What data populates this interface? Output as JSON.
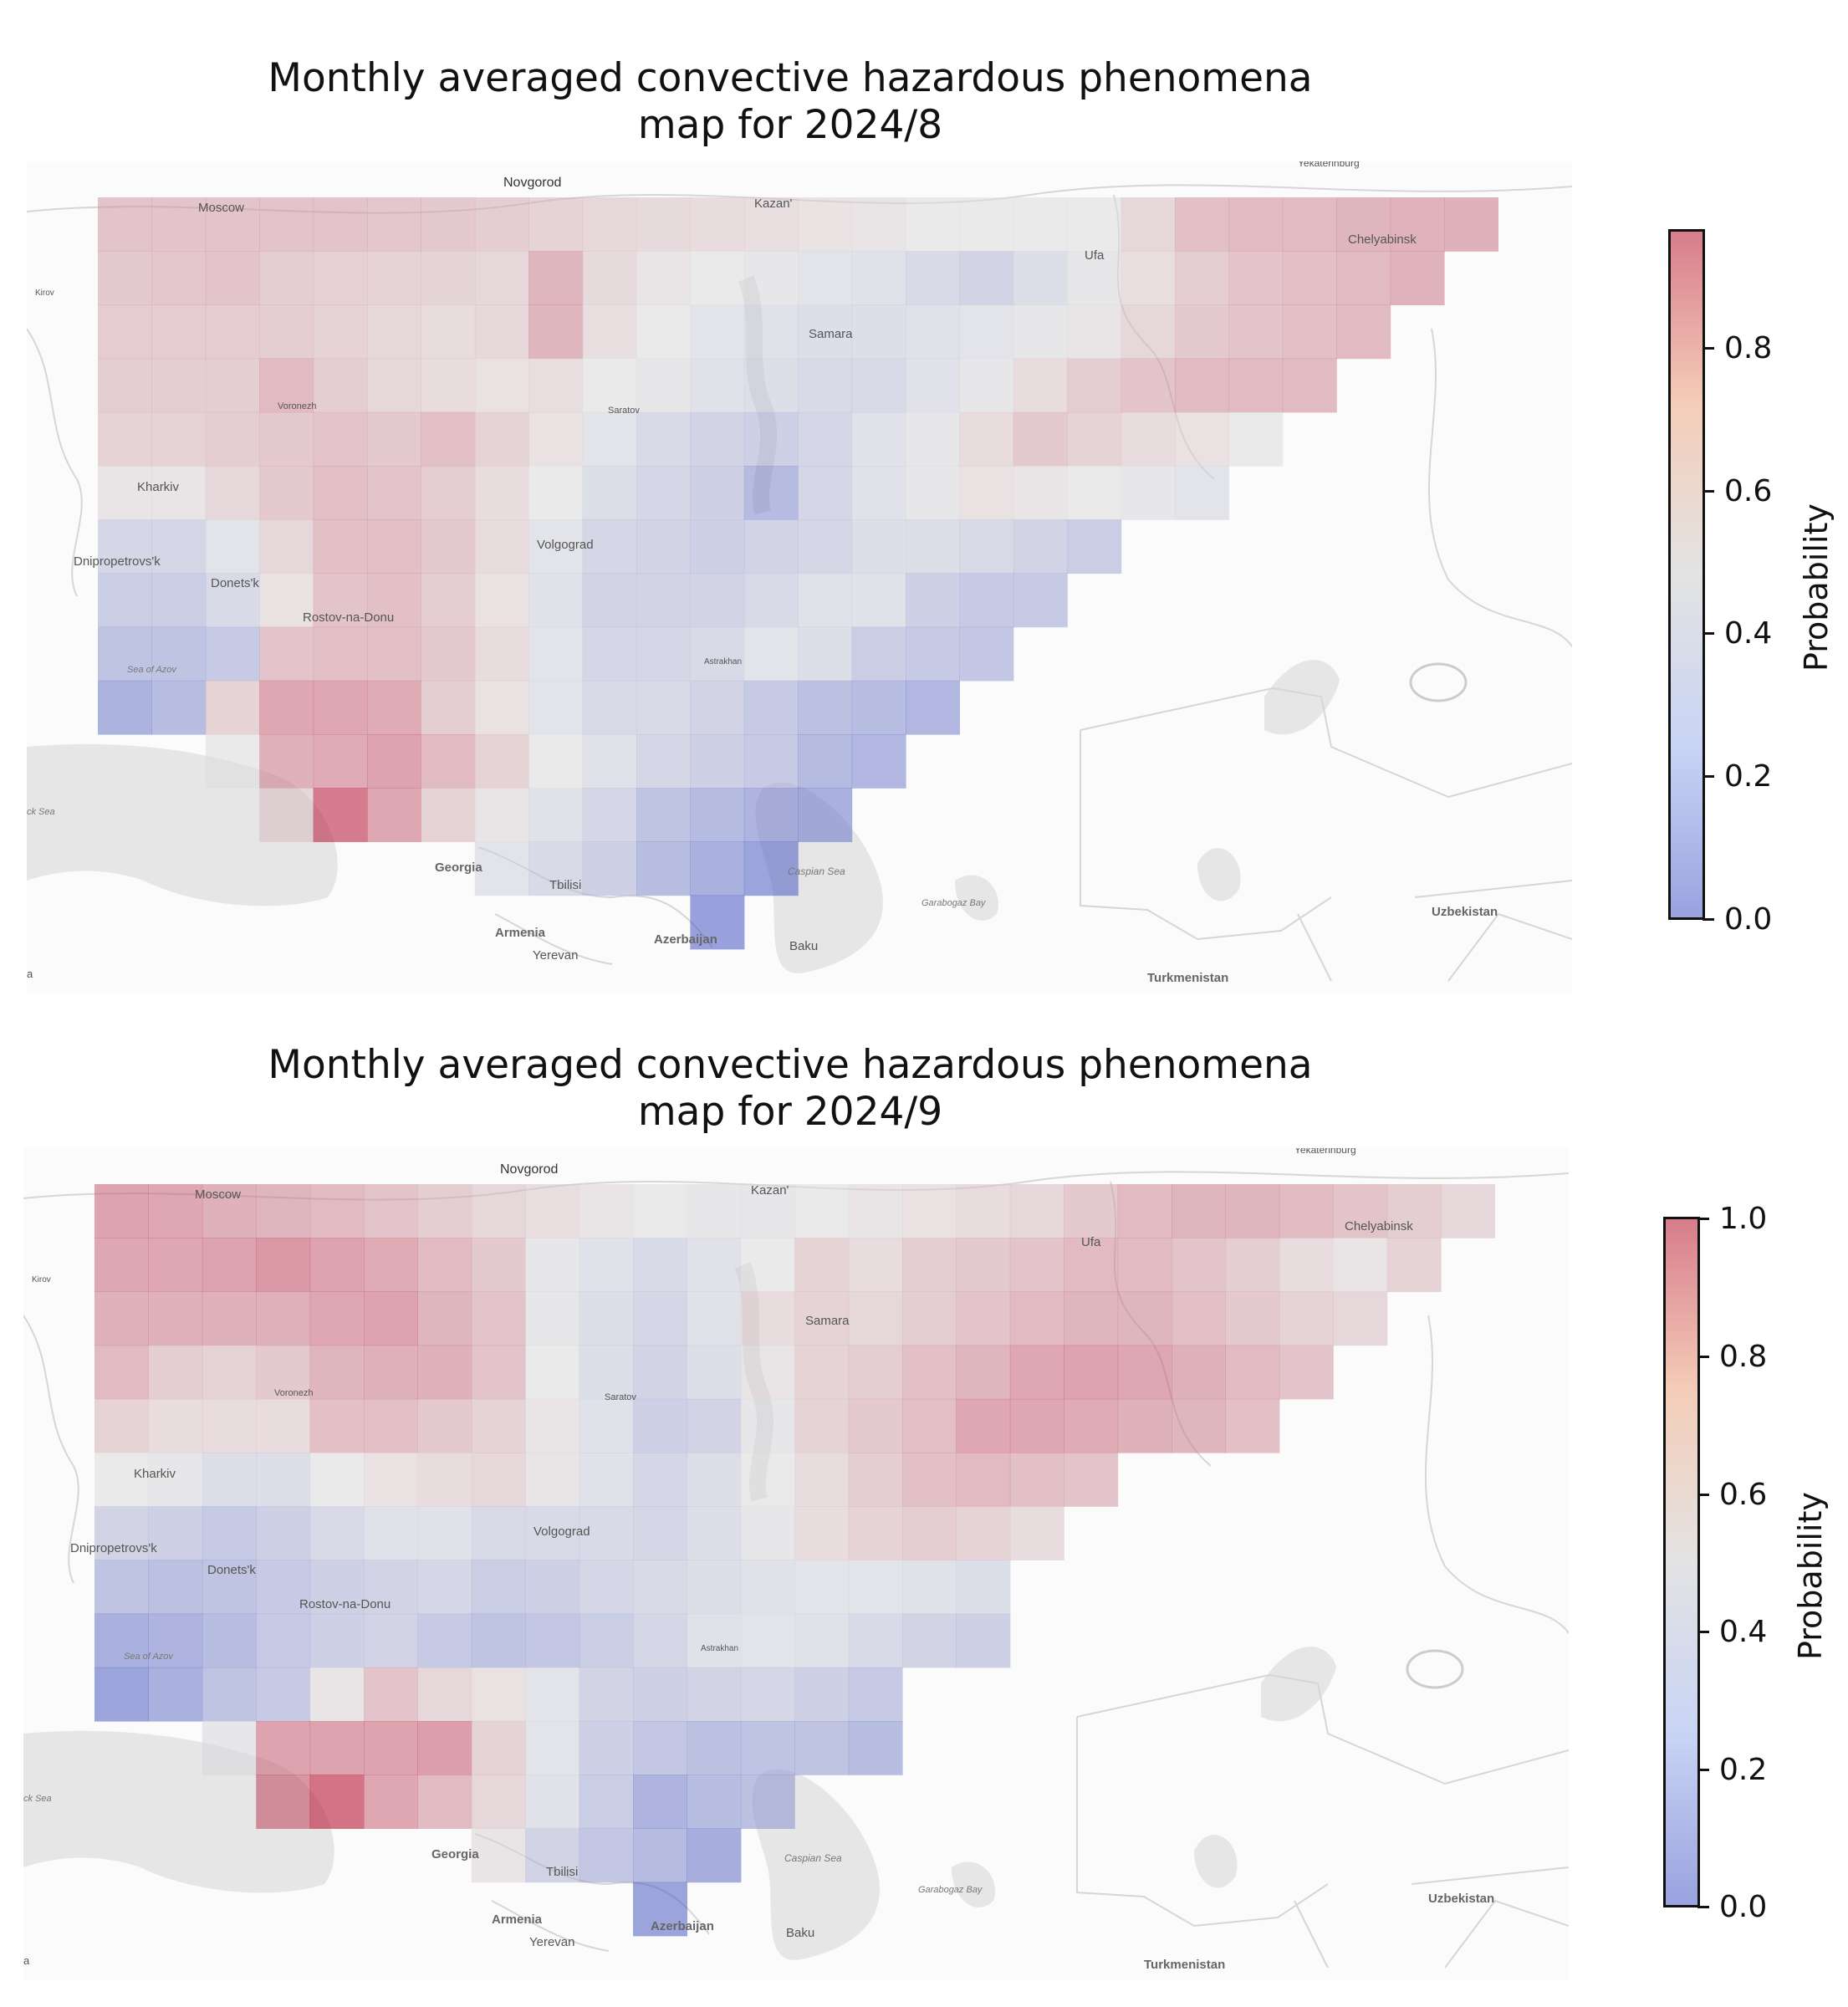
{
  "panels": [
    {
      "title_line1": "Monthly averaged convective hazardous phenomena",
      "title_line2": "map for 2024/8",
      "colorbar": {
        "label": "Probability",
        "ticks": [
          "0.0",
          "0.2",
          "0.4",
          "0.6",
          "0.8"
        ],
        "min": 0.0,
        "max": 0.96
      }
    },
    {
      "title_line1": "Monthly averaged convective hazardous phenomena",
      "title_line2": "map for 2024/9",
      "colorbar": {
        "label": "Probability",
        "ticks": [
          "0.0",
          "0.2",
          "0.4",
          "0.6",
          "0.8",
          "1.0"
        ],
        "min": 0.0,
        "max": 1.0
      }
    }
  ],
  "map_labels": {
    "novgorod": "Novgorod",
    "moscow": "Moscow",
    "kazan": "Kazan'",
    "chelyabinsk": "Chelyabinsk",
    "kirov": "Kirov",
    "ufa": "Ufa",
    "samara": "Samara",
    "voronezh": "Voronezh",
    "saratov": "Saratov",
    "kharkiv": "Kharkiv",
    "volgograd": "Volgograd",
    "dnipro": "Dnipropetrovs'k",
    "donetsk": "Donets'k",
    "rostov": "Rostov-na-Donu",
    "azov": "Sea of Azov",
    "astrakhan": "Astrakhan",
    "blacksea": "ck Sea",
    "georgia": "Georgia",
    "tbilisi": "Tbilisi",
    "caspian": "Caspian Sea",
    "garabogaz": "Garabogaz Bay",
    "armenia": "Armenia",
    "yerevan": "Yerevan",
    "azerbaijan": "Azerbaijan",
    "baku": "Baku",
    "uzbekistan": "Uzbekistan",
    "turkmenistan": "Turkmenistan",
    "edge_a": "a",
    "yekaterinburg": "Yekaterinburg"
  },
  "colors": {
    "low": "#3b4cc0",
    "mid": "#dddddd",
    "high": "#b40426"
  },
  "chart_data": {
    "type": "heatmap",
    "grid": {
      "columns": 26,
      "rows": 14,
      "west_to_east": "columns",
      "north_to_south": "rows"
    },
    "months": [
      {
        "month": "2024/8",
        "rows": [
          [
            0.66,
            0.66,
            0.66,
            0.66,
            0.66,
            0.65,
            0.64,
            0.62,
            0.6,
            0.58,
            0.57,
            0.56,
            0.55,
            0.53,
            0.52,
            0.5,
            0.5,
            0.5,
            0.5,
            0.58,
            0.68,
            0.7,
            0.7,
            0.72,
            0.73,
            0.74
          ],
          [
            0.64,
            0.65,
            0.66,
            0.62,
            0.61,
            0.6,
            0.59,
            0.58,
            0.72,
            0.57,
            0.52,
            0.5,
            0.48,
            0.46,
            0.44,
            0.4,
            0.36,
            0.42,
            0.48,
            0.55,
            0.62,
            0.66,
            0.68,
            0.7,
            0.73,
            null
          ],
          [
            0.63,
            0.63,
            0.63,
            0.62,
            0.6,
            0.58,
            0.56,
            0.58,
            0.72,
            0.55,
            0.5,
            0.46,
            0.44,
            0.42,
            0.42,
            0.44,
            0.46,
            0.48,
            0.52,
            0.58,
            0.64,
            0.66,
            0.68,
            0.7,
            null,
            null
          ],
          [
            0.62,
            0.62,
            0.62,
            0.7,
            0.62,
            0.58,
            0.56,
            0.54,
            0.55,
            0.5,
            0.48,
            0.44,
            0.42,
            0.4,
            0.4,
            0.44,
            0.48,
            0.56,
            0.62,
            0.66,
            0.7,
            0.7,
            0.7,
            null,
            null,
            null
          ],
          [
            0.6,
            0.6,
            0.62,
            0.64,
            0.66,
            0.64,
            0.68,
            0.6,
            0.54,
            0.46,
            0.4,
            0.36,
            0.34,
            0.38,
            0.44,
            0.48,
            0.56,
            0.64,
            0.6,
            0.56,
            0.54,
            0.5,
            null,
            null,
            null,
            null
          ],
          [
            0.52,
            0.52,
            0.58,
            0.64,
            0.68,
            0.66,
            0.62,
            0.56,
            0.5,
            0.42,
            0.38,
            0.34,
            0.2,
            0.38,
            0.44,
            0.48,
            0.54,
            0.52,
            0.5,
            0.48,
            0.46,
            null,
            null,
            null,
            null,
            null
          ],
          [
            0.38,
            0.38,
            0.46,
            0.58,
            0.68,
            0.68,
            0.64,
            0.56,
            0.46,
            0.38,
            0.36,
            0.34,
            0.36,
            0.38,
            0.42,
            0.42,
            0.4,
            0.36,
            0.32,
            null,
            null,
            null,
            null,
            null,
            null,
            null
          ],
          [
            0.32,
            0.32,
            0.4,
            0.54,
            0.66,
            0.68,
            0.62,
            0.54,
            0.44,
            0.36,
            0.36,
            0.36,
            0.4,
            0.44,
            0.44,
            0.34,
            0.3,
            0.3,
            null,
            null,
            null,
            null,
            null,
            null,
            null,
            null
          ],
          [
            0.26,
            0.26,
            0.3,
            0.66,
            0.68,
            0.68,
            0.64,
            0.56,
            0.46,
            0.38,
            0.38,
            0.4,
            0.46,
            0.42,
            0.32,
            0.3,
            0.28,
            null,
            null,
            null,
            null,
            null,
            null,
            null,
            null,
            null
          ],
          [
            0.15,
            0.22,
            0.6,
            0.78,
            0.78,
            0.76,
            0.62,
            0.54,
            0.46,
            0.4,
            0.4,
            0.36,
            0.3,
            0.24,
            0.22,
            0.18,
            null,
            null,
            null,
            null,
            null,
            null,
            null,
            null,
            null,
            null
          ],
          [
            null,
            null,
            0.5,
            0.74,
            0.76,
            0.8,
            0.7,
            0.6,
            0.5,
            0.44,
            0.38,
            0.34,
            0.3,
            0.2,
            0.18,
            null,
            null,
            null,
            null,
            null,
            null,
            null,
            null,
            null,
            null,
            null
          ],
          [
            null,
            null,
            null,
            0.58,
            0.96,
            0.78,
            0.6,
            0.52,
            0.44,
            0.38,
            0.26,
            0.2,
            0.16,
            0.14,
            null,
            null,
            null,
            null,
            null,
            null,
            null,
            null,
            null,
            null,
            null,
            null
          ],
          [
            null,
            null,
            null,
            null,
            null,
            null,
            null,
            0.46,
            0.4,
            0.34,
            0.22,
            0.14,
            0.06,
            null,
            null,
            null,
            null,
            null,
            null,
            null,
            null,
            null,
            null,
            null,
            null,
            null
          ],
          [
            null,
            null,
            null,
            null,
            null,
            null,
            null,
            null,
            null,
            null,
            null,
            0.04,
            null,
            null,
            null,
            null,
            null,
            null,
            null,
            null,
            null,
            null,
            null,
            null,
            null,
            null
          ]
        ]
      },
      {
        "month": "2024/9",
        "rows": [
          [
            0.8,
            0.78,
            0.74,
            0.72,
            0.7,
            0.66,
            0.62,
            0.58,
            0.55,
            0.52,
            0.5,
            0.48,
            0.48,
            0.5,
            0.52,
            0.54,
            0.56,
            0.58,
            0.64,
            0.7,
            0.72,
            0.72,
            0.7,
            0.66,
            0.62,
            0.58
          ],
          [
            0.78,
            0.78,
            0.8,
            0.84,
            0.8,
            0.76,
            0.7,
            0.64,
            0.48,
            0.44,
            0.4,
            0.44,
            0.5,
            0.6,
            0.56,
            0.62,
            0.64,
            0.66,
            0.7,
            0.7,
            0.66,
            0.62,
            0.56,
            0.52,
            0.6,
            null
          ],
          [
            0.74,
            0.74,
            0.74,
            0.74,
            0.78,
            0.8,
            0.72,
            0.66,
            0.48,
            0.42,
            0.38,
            0.44,
            0.56,
            0.6,
            0.58,
            0.62,
            0.66,
            0.7,
            0.72,
            0.72,
            0.68,
            0.64,
            0.6,
            0.58,
            null,
            null
          ],
          [
            0.7,
            0.62,
            0.6,
            0.64,
            0.72,
            0.74,
            0.74,
            0.66,
            0.5,
            0.42,
            0.36,
            0.42,
            0.52,
            0.6,
            0.62,
            0.68,
            0.72,
            0.78,
            0.8,
            0.78,
            0.74,
            0.7,
            0.66,
            null,
            null,
            null
          ],
          [
            0.6,
            0.56,
            0.56,
            0.56,
            0.68,
            0.68,
            0.64,
            0.6,
            0.52,
            0.44,
            0.34,
            0.36,
            0.48,
            0.6,
            0.64,
            0.68,
            0.78,
            0.78,
            0.76,
            0.74,
            0.72,
            0.68,
            null,
            null,
            null,
            null
          ],
          [
            0.5,
            0.48,
            0.42,
            0.42,
            0.5,
            0.54,
            0.56,
            0.58,
            0.52,
            0.44,
            0.38,
            0.42,
            0.5,
            0.56,
            0.62,
            0.68,
            0.7,
            0.68,
            0.66,
            null,
            null,
            null,
            null,
            null,
            null,
            null
          ],
          [
            0.36,
            0.34,
            0.3,
            0.34,
            0.4,
            0.44,
            0.44,
            0.4,
            0.4,
            0.4,
            0.38,
            0.42,
            0.48,
            0.56,
            0.6,
            0.62,
            0.6,
            0.56,
            null,
            null,
            null,
            null,
            null,
            null,
            null,
            null
          ],
          [
            0.26,
            0.24,
            0.26,
            0.3,
            0.34,
            0.36,
            0.38,
            0.32,
            0.34,
            0.38,
            0.4,
            0.42,
            0.44,
            0.46,
            0.46,
            0.44,
            0.42,
            null,
            null,
            null,
            null,
            null,
            null,
            null,
            null,
            null
          ],
          [
            0.14,
            0.16,
            0.22,
            0.3,
            0.34,
            0.36,
            0.3,
            0.26,
            0.28,
            0.32,
            0.38,
            0.44,
            0.46,
            0.44,
            0.4,
            0.36,
            0.34,
            null,
            null,
            null,
            null,
            null,
            null,
            null,
            null,
            null
          ],
          [
            0.06,
            0.14,
            0.26,
            0.3,
            0.52,
            0.66,
            0.58,
            0.54,
            0.46,
            0.36,
            0.34,
            0.36,
            0.38,
            0.34,
            0.3,
            null,
            null,
            null,
            null,
            null,
            null,
            null,
            null,
            null,
            null,
            null
          ],
          [
            null,
            null,
            0.48,
            0.8,
            0.8,
            0.8,
            0.82,
            0.6,
            0.46,
            0.34,
            0.28,
            0.24,
            0.26,
            0.26,
            0.22,
            null,
            null,
            null,
            null,
            null,
            null,
            null,
            null,
            null,
            null,
            null
          ],
          [
            null,
            null,
            null,
            0.86,
            1.0,
            0.78,
            0.7,
            0.58,
            0.44,
            0.32,
            0.16,
            0.22,
            0.24,
            null,
            null,
            null,
            null,
            null,
            null,
            null,
            null,
            null,
            null,
            null,
            null,
            null
          ],
          [
            null,
            null,
            null,
            null,
            null,
            null,
            null,
            0.52,
            0.36,
            0.28,
            0.2,
            0.12,
            null,
            null,
            null,
            null,
            null,
            null,
            null,
            null,
            null,
            null,
            null,
            null,
            null,
            null
          ],
          [
            null,
            null,
            null,
            null,
            null,
            null,
            null,
            null,
            null,
            null,
            0.06,
            null,
            null,
            null,
            null,
            null,
            null,
            null,
            null,
            null,
            null,
            null,
            null,
            null,
            null,
            null
          ]
        ]
      }
    ]
  }
}
